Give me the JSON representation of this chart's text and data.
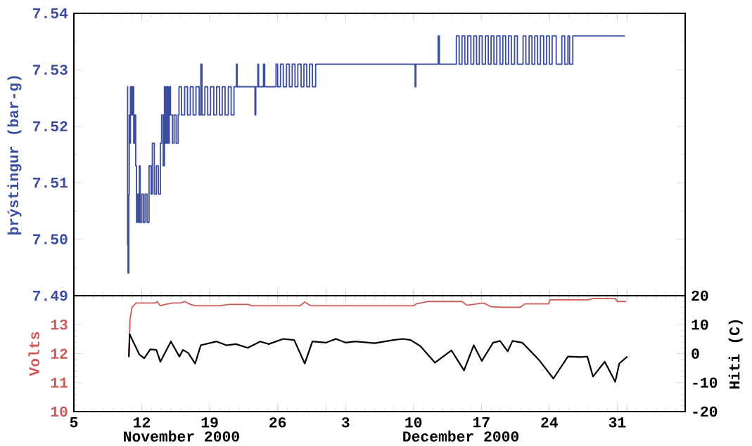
{
  "chart_data": [
    {
      "type": "step",
      "ylabel": "þrýstingur (bar-g)",
      "xlim": [
        "2000-11-05",
        "2001-01-07"
      ],
      "ylim": [
        7.49,
        7.54
      ],
      "tick_labels": "y",
      "xticks": [
        {
          "value": "2000-11-05",
          "label": null
        },
        {
          "value": "2000-11-12",
          "label": null
        },
        {
          "value": "2000-11-19",
          "label": null
        },
        {
          "value": "2000-11-26",
          "label": null
        },
        {
          "value": "2000-12-01",
          "label": null
        },
        {
          "value": "2000-12-03",
          "label": null
        },
        {
          "value": "2000-12-10",
          "label": null
        },
        {
          "value": "2000-12-17",
          "label": null
        },
        {
          "value": "2000-12-24",
          "label": null
        },
        {
          "value": "2000-12-31",
          "label": null
        },
        {
          "value": "2001-01-01",
          "label": null
        }
      ],
      "yticks": [
        {
          "value": 7.49,
          "label": "7.49"
        },
        {
          "value": 7.5,
          "label": "7.50"
        },
        {
          "value": 7.51,
          "label": "7.51"
        },
        {
          "value": 7.52,
          "label": "7.52"
        },
        {
          "value": 7.53,
          "label": "7.53"
        },
        {
          "value": 7.54,
          "label": "7.54"
        }
      ],
      "series": [
        {
          "color": "#3b4da0",
          "x": [
            "2000-11-10T12:00",
            "2000-11-10T13:00",
            "2000-11-10T14:00",
            "2000-11-10T16:00",
            "2000-11-10T17:00",
            "2000-11-10T19:00",
            "2000-11-10T20:00",
            "2000-11-10T23:00",
            "2000-11-11T01:00",
            "2000-11-11T04:00",
            "2000-11-11T06:00",
            "2000-11-11T09:00",
            "2000-11-11T11:00",
            "2000-11-11T13:00",
            "2000-11-11T16:00",
            "2000-11-11T18:00",
            "2000-11-11T20:00",
            "2000-11-12T00:00",
            "2000-11-12T04:00",
            "2000-11-12T08:00",
            "2000-11-12T13:00",
            "2000-11-12T18:00",
            "2000-11-12T23:00",
            "2000-11-13T02:00",
            "2000-11-13T07:00",
            "2000-11-13T12:00",
            "2000-11-13T17:00",
            "2000-11-13T22:00",
            "2000-11-14T01:00",
            "2000-11-14T05:00",
            "2000-11-14T08:00",
            "2000-11-14T11:00",
            "2000-11-14T14:00",
            "2000-11-14T17:00",
            "2000-11-14T20:00",
            "2000-11-14T23:00",
            "2000-11-15T04:00",
            "2000-11-15T08:00",
            "2000-11-15T13:00",
            "2000-11-15T18:00",
            "2000-11-15T20:00",
            "2000-11-16T02:00",
            "2000-11-16T10:00",
            "2000-11-16T17:00",
            "2000-11-17T00:00",
            "2000-11-17T07:00",
            "2000-11-17T14:00",
            "2000-11-17T22:00",
            "2000-11-18T02:00",
            "2000-11-18T05:00",
            "2000-11-18T12:00",
            "2000-11-18T19:00",
            "2000-11-19T02:00",
            "2000-11-19T10:00",
            "2000-11-19T17:00",
            "2000-11-20T00:00",
            "2000-11-20T07:00",
            "2000-11-20T14:00",
            "2000-11-20T22:00",
            "2000-11-21T05:00",
            "2000-11-21T12:00",
            "2000-11-21T18:00",
            "2000-11-21T20:00",
            "2000-11-23T16:00",
            "2000-11-23T18:00",
            "2000-11-23T23:00",
            "2000-11-24T01:00",
            "2000-11-24T13:00",
            "2000-11-24T16:00",
            "2000-11-25T20:00",
            "2000-11-26T00:00",
            "2000-11-26T07:00",
            "2000-11-26T14:00",
            "2000-11-26T22:00",
            "2000-11-27T05:00",
            "2000-11-27T12:00",
            "2000-11-27T19:00",
            "2000-11-28T02:00",
            "2000-11-28T10:00",
            "2000-11-28T17:00",
            "2000-11-29T00:00",
            "2000-11-29T07:00",
            "2000-11-29T14:00",
            "2000-11-29T22:00",
            "2000-12-10T04:00",
            "2000-12-10T06:00",
            "2000-12-12T13:00",
            "2000-12-12T16:00",
            "2000-12-14T10:00",
            "2000-12-14T17:00",
            "2000-12-15T00:00",
            "2000-12-15T07:00",
            "2000-12-15T14:00",
            "2000-12-15T22:00",
            "2000-12-16T05:00",
            "2000-12-16T12:00",
            "2000-12-16T19:00",
            "2000-12-17T02:00",
            "2000-12-17T10:00",
            "2000-12-17T17:00",
            "2000-12-18T00:00",
            "2000-12-18T07:00",
            "2000-12-18T14:00",
            "2000-12-18T22:00",
            "2000-12-19T05:00",
            "2000-12-19T12:00",
            "2000-12-19T19:00",
            "2000-12-20T02:00",
            "2000-12-20T10:00",
            "2000-12-20T17:00",
            "2000-12-21T07:00",
            "2000-12-21T14:00",
            "2000-12-21T22:00",
            "2000-12-22T05:00",
            "2000-12-22T12:00",
            "2000-12-22T19:00",
            "2000-12-23T02:00",
            "2000-12-23T10:00",
            "2000-12-23T17:00",
            "2000-12-24T00:00",
            "2000-12-24T07:00",
            "2000-12-24T17:00",
            "2000-12-25T07:00",
            "2000-12-25T14:00",
            "2000-12-25T22:00",
            "2000-12-26T02:00",
            "2000-12-26T10:00",
            "2000-12-31T19:00"
          ],
          "values": [
            7.527,
            7.499,
            7.494,
            7.508,
            7.522,
            7.517,
            7.527,
            7.522,
            7.527,
            7.517,
            7.522,
            7.513,
            7.503,
            7.508,
            7.503,
            7.513,
            7.503,
            7.508,
            7.503,
            7.508,
            7.503,
            7.513,
            7.508,
            7.517,
            7.508,
            7.513,
            7.508,
            7.517,
            7.522,
            7.513,
            7.527,
            7.517,
            7.527,
            7.517,
            7.527,
            7.522,
            7.517,
            7.522,
            7.517,
            7.522,
            7.527,
            7.522,
            7.527,
            7.522,
            7.527,
            7.522,
            7.527,
            7.522,
            7.531,
            7.522,
            7.527,
            7.522,
            7.527,
            7.522,
            7.527,
            7.522,
            7.527,
            7.522,
            7.527,
            7.522,
            7.527,
            7.531,
            7.527,
            7.522,
            7.527,
            7.531,
            7.527,
            7.531,
            7.527,
            7.531,
            7.527,
            7.531,
            7.527,
            7.531,
            7.527,
            7.531,
            7.527,
            7.531,
            7.527,
            7.531,
            7.527,
            7.531,
            7.527,
            7.531,
            7.527,
            7.531,
            7.536,
            7.531,
            7.536,
            7.531,
            7.536,
            7.531,
            7.536,
            7.531,
            7.536,
            7.531,
            7.536,
            7.531,
            7.536,
            7.531,
            7.536,
            7.531,
            7.536,
            7.531,
            7.536,
            7.531,
            7.536,
            7.531,
            7.536,
            7.531,
            7.536,
            7.531,
            7.536,
            7.531,
            7.536,
            7.531,
            7.536,
            7.531,
            7.536,
            7.531,
            7.536,
            7.531,
            7.536,
            7.531,
            7.536,
            7.531,
            7.536,
            7.536
          ]
        }
      ]
    },
    {
      "type": "line",
      "ylabel": "Volts",
      "y2label": "Hiti (C)",
      "xlim": [
        "2000-11-05",
        "2001-01-07"
      ],
      "ylim": [
        10,
        14
      ],
      "y2lim": [
        -20,
        20
      ],
      "annotations": [
        "November 2000",
        "December 2000"
      ],
      "xticks": [
        {
          "value": "2000-11-05",
          "label": "5"
        },
        {
          "value": "2000-11-12",
          "label": "12"
        },
        {
          "value": "2000-11-19",
          "label": "19"
        },
        {
          "value": "2000-11-26",
          "label": "26"
        },
        {
          "value": "2000-12-01",
          "label": null
        },
        {
          "value": "2000-12-03",
          "label": "3"
        },
        {
          "value": "2000-12-10",
          "label": "10"
        },
        {
          "value": "2000-12-17",
          "label": "17"
        },
        {
          "value": "2000-12-24",
          "label": "24"
        },
        {
          "value": "2000-12-31",
          "label": "31"
        },
        {
          "value": "2001-01-01",
          "label": null
        }
      ],
      "yticks": [
        10,
        11,
        12,
        13
      ],
      "y2ticks": [
        -20,
        -10,
        0,
        10,
        20
      ],
      "series": [
        {
          "color": "#cc5a5a",
          "axis": "y",
          "x": [
            "2000-11-10T16:00",
            "2000-11-10T19:00",
            "2000-11-11T00:00",
            "2000-11-11T10:00",
            "2000-11-13T10:00",
            "2000-11-13T14:00",
            "2000-11-13T22:00",
            "2000-11-14T10:00",
            "2000-11-15T05:00",
            "2000-11-16T00:00",
            "2000-11-16T10:00",
            "2000-11-17T00:00",
            "2000-11-17T14:00",
            "2000-11-20T00:00",
            "2000-11-21T00:00",
            "2000-11-23T00:00",
            "2000-11-23T07:00",
            "2000-11-28T07:00",
            "2000-11-28T19:00",
            "2000-11-29T10:00",
            "2000-12-10T00:00",
            "2000-12-10T07:00",
            "2000-12-11T12:00",
            "2000-12-15T00:00",
            "2000-12-15T12:00",
            "2000-12-17T05:00",
            "2000-12-18T00:00",
            "2000-12-19T00:00",
            "2000-12-21T00:00",
            "2000-12-21T12:00",
            "2000-12-23T22:00",
            "2000-12-24T02:00",
            "2000-12-28T00:00",
            "2000-12-28T12:00",
            "2000-12-30T19:00",
            "2000-12-31T00:00",
            "2000-12-31T22:00"
          ],
          "values": [
            11.9,
            13.2,
            13.6,
            13.75,
            13.75,
            13.8,
            13.65,
            13.7,
            13.75,
            13.75,
            13.8,
            13.7,
            13.65,
            13.65,
            13.7,
            13.7,
            13.65,
            13.65,
            13.78,
            13.65,
            13.65,
            13.72,
            13.8,
            13.8,
            13.67,
            13.75,
            13.62,
            13.6,
            13.6,
            13.72,
            13.72,
            13.86,
            13.86,
            13.9,
            13.9,
            13.8,
            13.8
          ]
        },
        {
          "color": "#000000",
          "axis": "y2",
          "x": [
            "2000-11-10T16:00",
            "2000-11-10T18:00",
            "2000-11-11T18:00",
            "2000-11-12T06:00",
            "2000-11-12T21:00",
            "2000-11-13T12:00",
            "2000-11-13T22:00",
            "2000-11-15T00:00",
            "2000-11-15T21:00",
            "2000-11-16T06:00",
            "2000-11-16T19:00",
            "2000-11-17T12:00",
            "2000-11-18T02:00",
            "2000-11-19T17:00",
            "2000-11-20T17:00",
            "2000-11-21T17:00",
            "2000-11-22T22:00",
            "2000-11-24T05:00",
            "2000-11-25T02:00",
            "2000-11-26T14:00",
            "2000-11-27T17:00",
            "2000-11-28T19:00",
            "2000-11-29T14:00",
            "2000-12-01T00:00",
            "2000-12-02T00:00",
            "2000-12-03T00:00",
            "2000-12-04T00:00",
            "2000-12-06T00:00",
            "2000-12-07T22:00",
            "2000-12-08T22:00",
            "2000-12-09T17:00",
            "2000-12-10T17:00",
            "2000-12-12T05:00",
            "2000-12-13T22:00",
            "2000-12-15T05:00",
            "2000-12-16T05:00",
            "2000-12-17T01:00",
            "2000-12-18T05:00",
            "2000-12-18T22:00",
            "2000-12-19T17:00",
            "2000-12-20T05:00",
            "2000-12-21T05:00",
            "2000-12-22T22:00",
            "2000-12-24T10:00",
            "2000-12-25T22:00",
            "2000-12-27T05:00",
            "2000-12-27T22:00",
            "2000-12-28T12:00",
            "2000-12-29T17:00",
            "2000-12-30T19:00",
            "2000-12-31T05:00",
            "2001-01-01T01:00"
          ],
          "values": [
            -1.2,
            6.7,
            -0.3,
            -1.6,
            1.5,
            1.3,
            -2.8,
            4.2,
            -1.0,
            1.3,
            0.2,
            -3.4,
            2.9,
            4.2,
            2.9,
            3.3,
            2.0,
            4.2,
            3.3,
            5.1,
            4.7,
            -3.4,
            4.2,
            3.8,
            5.1,
            3.8,
            4.2,
            3.6,
            4.7,
            5.1,
            4.7,
            2.6,
            -3.1,
            1.1,
            -5.8,
            2.9,
            -2.5,
            3.8,
            4.4,
            0.8,
            4.4,
            3.8,
            -2.1,
            -8.6,
            -1.0,
            -1.2,
            -1.0,
            -7.9,
            -2.8,
            -9.7,
            -3.4,
            -1.0
          ]
        }
      ]
    }
  ]
}
